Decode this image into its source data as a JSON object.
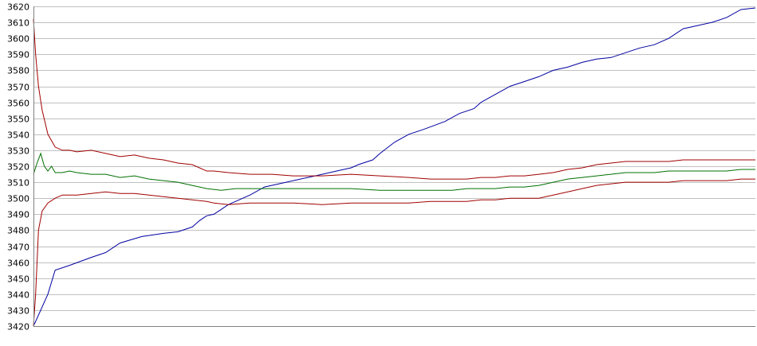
{
  "chart_data": {
    "type": "line",
    "title": "",
    "xlabel": "",
    "ylabel": "",
    "grid": true,
    "ylim": [
      3420,
      3620
    ],
    "xlim": [
      0,
      100
    ],
    "yticks": [
      "3620",
      "3610",
      "3600",
      "3590",
      "3580",
      "3570",
      "3560",
      "3550",
      "3540",
      "3530",
      "3520",
      "3510",
      "3500",
      "3490",
      "3480",
      "3470",
      "3460",
      "3450",
      "3440",
      "3430",
      "3420"
    ],
    "series": [
      {
        "color": "#0000a0",
        "x": [
          0,
          1,
          2,
          3,
          5,
          8,
          10,
          12,
          15,
          18,
          20,
          22,
          23,
          24,
          25,
          26,
          27,
          28,
          30,
          32,
          35,
          38,
          40,
          42,
          44,
          45,
          47,
          48,
          50,
          52,
          54,
          57,
          59,
          61,
          62,
          64,
          66,
          68,
          70,
          72,
          74,
          76,
          78,
          80,
          82,
          84,
          86,
          88,
          90,
          92,
          94,
          96,
          98,
          100
        ],
        "y": [
          3420,
          3430,
          3440,
          3455,
          3458,
          3463,
          3466,
          3472,
          3476,
          3478,
          3479,
          3482,
          3486,
          3489,
          3490,
          3493,
          3496,
          3498,
          3502,
          3507,
          3510,
          3513,
          3515,
          3517,
          3519,
          3521,
          3524,
          3528,
          3535,
          3540,
          3543,
          3548,
          3553,
          3556,
          3560,
          3565,
          3570,
          3573,
          3576,
          3580,
          3582,
          3585,
          3587,
          3588,
          3591,
          3594,
          3596,
          3600,
          3606,
          3608,
          3610,
          3613,
          3618,
          3619
        ]
      },
      {
        "color": "#a00000",
        "x": [
          0,
          0.3,
          0.7,
          1.2,
          2,
          3,
          4,
          5,
          6,
          8,
          10,
          12,
          14,
          16,
          18,
          20,
          22,
          24,
          25,
          27,
          30,
          33,
          36,
          40,
          44,
          48,
          52,
          55,
          58,
          60,
          62,
          64,
          66,
          68,
          70,
          72,
          74,
          76,
          78,
          80,
          82,
          84,
          86,
          88,
          90,
          92,
          94,
          96,
          98,
          100
        ],
        "y": [
          3612,
          3590,
          3570,
          3555,
          3540,
          3532,
          3530,
          3530,
          3529,
          3530,
          3528,
          3526,
          3527,
          3525,
          3524,
          3522,
          3521,
          3517,
          3517,
          3516,
          3515,
          3515,
          3514,
          3514,
          3515,
          3514,
          3513,
          3512,
          3512,
          3512,
          3513,
          3513,
          3514,
          3514,
          3515,
          3516,
          3518,
          3519,
          3521,
          3522,
          3523,
          3523,
          3523,
          3523,
          3524,
          3524,
          3524,
          3524,
          3524,
          3524
        ]
      },
      {
        "color": "#007000",
        "x": [
          0,
          0.5,
          1,
          1.5,
          2,
          2.5,
          3,
          4,
          5,
          6,
          8,
          10,
          12,
          14,
          16,
          18,
          20,
          22,
          24,
          26,
          28,
          30,
          33,
          36,
          40,
          44,
          48,
          52,
          55,
          58,
          60,
          62,
          64,
          66,
          68,
          70,
          72,
          74,
          76,
          78,
          80,
          82,
          84,
          86,
          88,
          90,
          92,
          94,
          96,
          98,
          100
        ],
        "y": [
          3515,
          3522,
          3528,
          3520,
          3517,
          3520,
          3516,
          3516,
          3517,
          3516,
          3515,
          3515,
          3513,
          3514,
          3512,
          3511,
          3510,
          3508,
          3506,
          3505,
          3506,
          3506,
          3506,
          3506,
          3506,
          3506,
          3505,
          3505,
          3505,
          3505,
          3506,
          3506,
          3506,
          3507,
          3507,
          3508,
          3510,
          3512,
          3513,
          3514,
          3515,
          3516,
          3516,
          3516,
          3517,
          3517,
          3517,
          3517,
          3517,
          3518,
          3518
        ]
      },
      {
        "color": "#a00000",
        "x": [
          0,
          0.3,
          0.7,
          1.2,
          2,
          3,
          4,
          5,
          6,
          8,
          10,
          12,
          14,
          16,
          18,
          20,
          22,
          24,
          25,
          27,
          30,
          33,
          36,
          40,
          44,
          48,
          52,
          55,
          58,
          60,
          62,
          64,
          66,
          68,
          70,
          72,
          74,
          76,
          78,
          80,
          82,
          84,
          86,
          88,
          90,
          92,
          94,
          96,
          98,
          100
        ],
        "y": [
          3420,
          3440,
          3480,
          3492,
          3497,
          3500,
          3502,
          3502,
          3502,
          3503,
          3504,
          3503,
          3503,
          3502,
          3501,
          3500,
          3499,
          3498,
          3497,
          3496,
          3497,
          3497,
          3497,
          3496,
          3497,
          3497,
          3497,
          3498,
          3498,
          3498,
          3499,
          3499,
          3500,
          3500,
          3500,
          3502,
          3504,
          3506,
          3508,
          3509,
          3510,
          3510,
          3510,
          3510,
          3511,
          3511,
          3511,
          3511,
          3512,
          3512
        ]
      }
    ]
  }
}
